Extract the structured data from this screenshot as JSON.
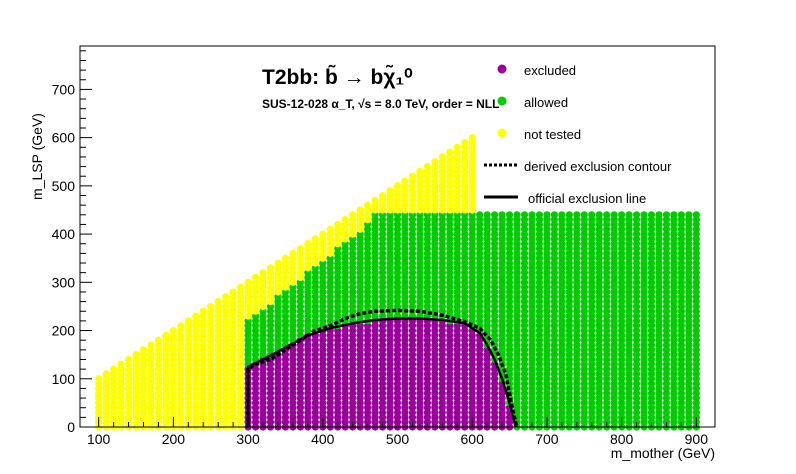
{
  "chart_data": {
    "type": "scatter",
    "title": "T2bb: b̃ → bχ̃₁⁰",
    "subtitle": "SUS-12-028   α_T, √s =  8.0 TeV, order = NLL",
    "xlabel": "m_mother (GeV)",
    "ylabel": "m_LSP (GeV)",
    "xlim": [
      75,
      925
    ],
    "ylim": [
      0,
      790
    ],
    "x_ticks": [
      "100",
      "200",
      "300",
      "400",
      "500",
      "600",
      "700",
      "800",
      "900"
    ],
    "y_ticks": [
      "0",
      "100",
      "200",
      "300",
      "400",
      "500",
      "600",
      "700"
    ],
    "grid": {
      "x_min": 100,
      "x_max": 900,
      "x_step": 10,
      "y_min": 0,
      "y_step": 10,
      "diagonal_offset": 0,
      "y_cap": 440,
      "tested_x_min": 300,
      "tested_x_min_high": 470,
      "tested_y_split": 220
    },
    "series": [
      {
        "name": "excluded",
        "color": "#990099"
      },
      {
        "name": "allowed",
        "color": "#00cc00"
      },
      {
        "name": "not tested",
        "color": "#ffff00"
      },
      {
        "name": "derived exclusion contour",
        "color": "#000000"
      },
      {
        "name": "official exclusion line",
        "color": "#000000"
      }
    ],
    "derived_exclusion_contour": [
      [
        300,
        0
      ],
      [
        300,
        120
      ],
      [
        310,
        130
      ],
      [
        330,
        140
      ],
      [
        350,
        160
      ],
      [
        370,
        180
      ],
      [
        390,
        200
      ],
      [
        410,
        210
      ],
      [
        430,
        225
      ],
      [
        450,
        235
      ],
      [
        470,
        240
      ],
      [
        500,
        242
      ],
      [
        530,
        240
      ],
      [
        560,
        232
      ],
      [
        590,
        218
      ],
      [
        610,
        205
      ],
      [
        625,
        180
      ],
      [
        635,
        150
      ],
      [
        645,
        110
      ],
      [
        650,
        70
      ],
      [
        655,
        30
      ],
      [
        660,
        0
      ]
    ],
    "official_exclusion_line": [
      [
        300,
        0
      ],
      [
        300,
        125
      ],
      [
        320,
        140
      ],
      [
        350,
        165
      ],
      [
        380,
        190
      ],
      [
        410,
        205
      ],
      [
        440,
        215
      ],
      [
        470,
        222
      ],
      [
        500,
        225
      ],
      [
        530,
        225
      ],
      [
        560,
        222
      ],
      [
        590,
        215
      ],
      [
        610,
        195
      ],
      [
        620,
        170
      ],
      [
        630,
        140
      ],
      [
        640,
        100
      ],
      [
        648,
        60
      ],
      [
        655,
        20
      ],
      [
        658,
        0
      ]
    ],
    "legend_position": "top-right"
  },
  "colors": {
    "excluded": "#990099",
    "allowed": "#00cc00",
    "not_tested": "#ffff00"
  }
}
